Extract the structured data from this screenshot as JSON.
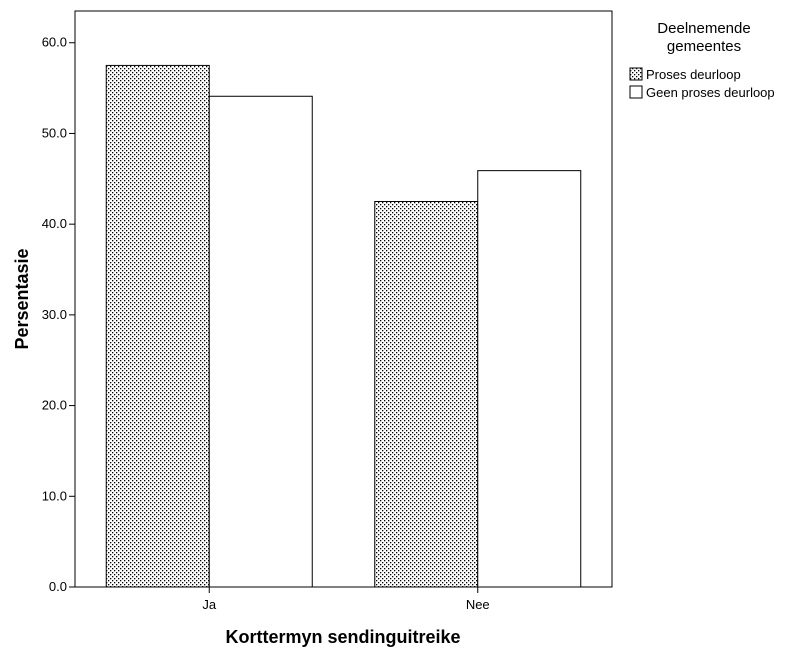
{
  "chart_data": {
    "type": "bar",
    "categories": [
      "Ja",
      "Nee"
    ],
    "series": [
      {
        "name": "Proses deurloop",
        "values": [
          57.5,
          42.5
        ],
        "fill": "dotted"
      },
      {
        "name": "Geen proses deurloop",
        "values": [
          54.1,
          45.9
        ],
        "fill": "white"
      }
    ],
    "xlabel": "Korttermyn sendinguitreike",
    "ylabel": "Persentasie",
    "ylim": [
      0,
      63.5
    ],
    "yticks": [
      "0.0",
      "10.0",
      "20.0",
      "30.0",
      "40.0",
      "50.0",
      "60.0"
    ],
    "ytick_values": [
      0,
      10,
      20,
      30,
      40,
      50,
      60
    ],
    "legend": {
      "title_lines": [
        "Deelnemende",
        "gemeentes"
      ],
      "placement": "right"
    },
    "grid": false,
    "colors": {
      "bar_outline": "#000000",
      "dot_fill": "#000000",
      "background": "#ffffff"
    }
  }
}
